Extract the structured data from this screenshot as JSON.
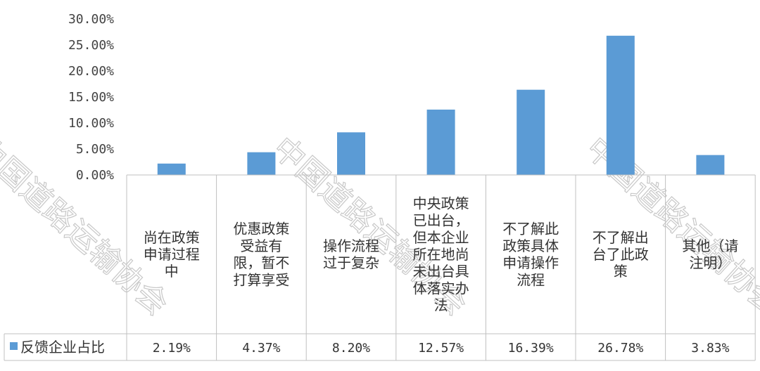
{
  "chart_data": {
    "type": "bar",
    "categories": [
      "尚在政策申请过程中",
      "优惠政策受益有限，暂不打算享受",
      "操作流程过于复杂",
      "中央政策已出台，但本企业所在地尚未出台具体落实办法",
      "不了解此政策具体申请操作流程",
      "不了解出台了此政策",
      "其他（请注明）"
    ],
    "category_lines": [
      [
        "尚在政策",
        "申请过程",
        "中"
      ],
      [
        "优惠政策",
        "受益有",
        "限，暂不",
        "打算享受"
      ],
      [
        "操作流程",
        "过于复杂"
      ],
      [
        "中央政策",
        "已出台，",
        "但本企业",
        "所在地尚",
        "未出台具",
        "体落实办",
        "法"
      ],
      [
        "不了解此",
        "政策具体",
        "申请操作",
        "流程"
      ],
      [
        "不了解出",
        "台了此政",
        "策"
      ],
      [
        "其他（请",
        "注明）"
      ]
    ],
    "series": [
      {
        "name": "反馈企业占比",
        "values": [
          2.19,
          4.37,
          8.2,
          12.57,
          16.39,
          26.78,
          3.83
        ],
        "labels": [
          "2.19%",
          "4.37%",
          "8.20%",
          "12.57%",
          "16.39%",
          "26.78%",
          "3.83%"
        ]
      }
    ],
    "yticks": [
      "0.00%",
      "5.00%",
      "10.00%",
      "15.00%",
      "20.00%",
      "25.00%",
      "30.00%"
    ],
    "ylim": [
      0,
      30
    ],
    "grid": false,
    "legend": "data-table-left",
    "title": "",
    "xlabel": "",
    "ylabel": ""
  },
  "colors": {
    "bar": "#5b9bd5",
    "table_border": "#c0c0c0",
    "axis": "#bdbdbd"
  },
  "watermark": {
    "text": "中国道路运输协会"
  }
}
